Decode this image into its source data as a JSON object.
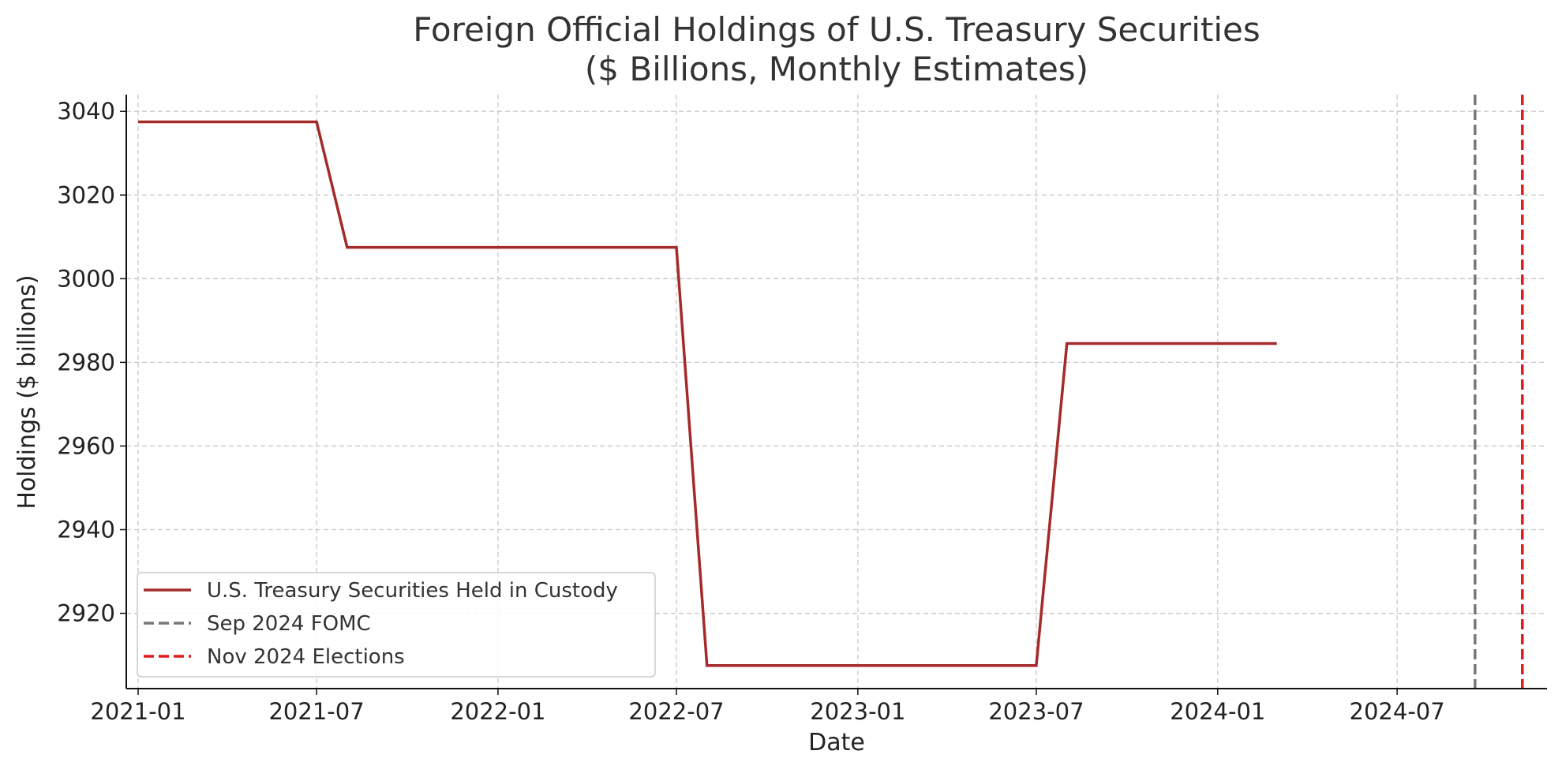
{
  "chart_data": {
    "type": "line",
    "title": "Foreign Official Holdings of U.S. Treasury Securities",
    "subtitle": "($ Billions, Monthly Estimates)",
    "xlabel": "Date",
    "ylabel": "Holdings ($ billions)",
    "xlim": [
      "2020-12-20",
      "2024-11-30"
    ],
    "ylim": [
      2902,
      3044
    ],
    "x_ticks": [
      "2021-01",
      "2021-07",
      "2022-01",
      "2022-07",
      "2023-01",
      "2023-07",
      "2024-01",
      "2024-07"
    ],
    "y_ticks": [
      2920,
      2940,
      2960,
      2980,
      3000,
      3020,
      3040
    ],
    "grid": true,
    "legend_position": "lower left",
    "series": [
      {
        "name": "U.S. Treasury Securities Held in Custody",
        "color": "#a52a2a",
        "x": [
          "2021-01-01",
          "2021-07-01",
          "2021-08-01",
          "2022-07-01",
          "2022-08-01",
          "2023-07-01",
          "2023-08-01",
          "2024-03-01"
        ],
        "y": [
          3037.5,
          3037.5,
          3007.5,
          3007.5,
          2907.5,
          2907.5,
          2984.5,
          2984.5
        ]
      }
    ],
    "vlines": [
      {
        "name": "Sep 2024 FOMC",
        "x": "2024-09-18",
        "color": "#777777"
      },
      {
        "name": "Nov 2024 Elections",
        "x": "2024-11-05",
        "color": "#e31a1c"
      }
    ]
  }
}
